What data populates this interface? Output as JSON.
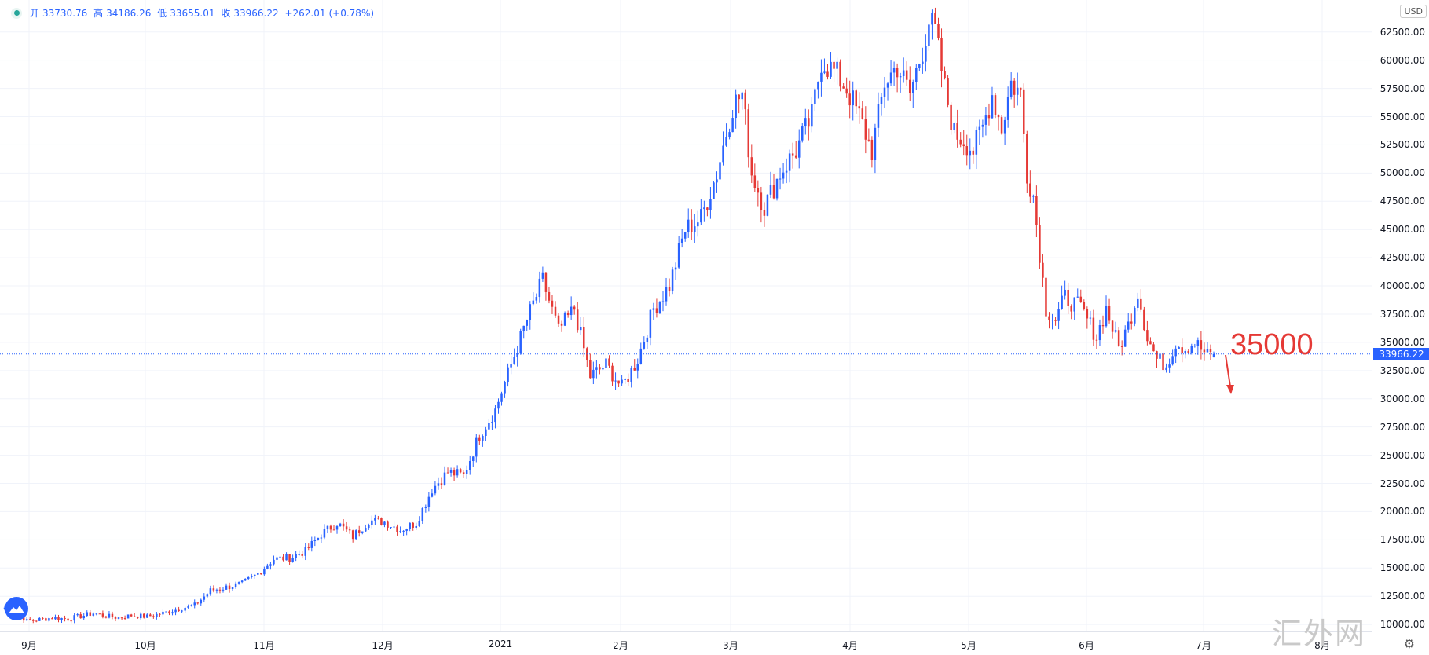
{
  "legend": {
    "open_label": "开",
    "open": "33730.76",
    "high_label": "高",
    "high": "34186.26",
    "low_label": "低",
    "low": "33655.01",
    "close_label": "收",
    "close": "33966.22",
    "change": "+262.01",
    "change_pct": "(+0.78%)"
  },
  "currency": "USD",
  "last_price": "33966.22",
  "annotation": {
    "text": "35000",
    "color": "#e53935"
  },
  "watermark": "汇外网",
  "colors": {
    "up": "#2962ff",
    "down": "#e53935",
    "grid": "#f0f3fa",
    "price_line": "#2962ff"
  },
  "chart_data": {
    "type": "candlestick",
    "y_ticks": [
      "10000.00",
      "12500.00",
      "15000.00",
      "17500.00",
      "20000.00",
      "22500.00",
      "25000.00",
      "27500.00",
      "30000.00",
      "32500.00",
      "35000.00",
      "37500.00",
      "40000.00",
      "42500.00",
      "45000.00",
      "47500.00",
      "50000.00",
      "52500.00",
      "55000.00",
      "57500.00",
      "60000.00",
      "62500.00"
    ],
    "x_ticks": [
      "9月",
      "10月",
      "11月",
      "12月",
      "2021",
      "2月",
      "3月",
      "4月",
      "5月",
      "6月",
      "7月",
      "8月"
    ],
    "ylim": [
      9800,
      64500
    ],
    "anchors": [
      [
        0,
        11500
      ],
      [
        2,
        11200
      ],
      [
        5,
        10800
      ],
      [
        7,
        10300
      ],
      [
        10,
        10400
      ],
      [
        15,
        10600
      ],
      [
        20,
        10500
      ],
      [
        25,
        10800
      ],
      [
        28,
        11000
      ],
      [
        33,
        10700
      ],
      [
        36,
        10600
      ],
      [
        40,
        10800
      ],
      [
        45,
        10700
      ],
      [
        50,
        11000
      ],
      [
        55,
        11400
      ],
      [
        60,
        11700
      ],
      [
        65,
        13000
      ],
      [
        70,
        13300
      ],
      [
        75,
        13600
      ],
      [
        80,
        14500
      ],
      [
        85,
        15800
      ],
      [
        90,
        15900
      ],
      [
        95,
        16500
      ],
      [
        100,
        18000
      ],
      [
        105,
        19000
      ],
      [
        110,
        17800
      ],
      [
        115,
        19200
      ],
      [
        120,
        19100
      ],
      [
        125,
        18400
      ],
      [
        130,
        19000
      ],
      [
        135,
        22000
      ],
      [
        140,
        23500
      ],
      [
        145,
        23200
      ],
      [
        150,
        26800
      ],
      [
        155,
        29000
      ],
      [
        160,
        33000
      ],
      [
        165,
        37000
      ],
      [
        170,
        40500
      ],
      [
        175,
        36000
      ],
      [
        180,
        38000
      ],
      [
        185,
        32000
      ],
      [
        190,
        33000
      ],
      [
        195,
        31000
      ],
      [
        200,
        33500
      ],
      [
        205,
        38000
      ],
      [
        210,
        40000
      ],
      [
        215,
        45000
      ],
      [
        220,
        46000
      ],
      [
        225,
        50000
      ],
      [
        230,
        56000
      ],
      [
        233,
        57000
      ],
      [
        236,
        50000
      ],
      [
        240,
        47000
      ],
      [
        245,
        50000
      ],
      [
        250,
        52000
      ],
      [
        255,
        55000
      ],
      [
        258,
        60000
      ],
      [
        262,
        59000
      ],
      [
        266,
        57500
      ],
      [
        270,
        55000
      ],
      [
        274,
        52000
      ],
      [
        278,
        58000
      ],
      [
        282,
        59500
      ],
      [
        286,
        57000
      ],
      [
        290,
        61000
      ],
      [
        292,
        63500
      ],
      [
        294,
        62500
      ],
      [
        297,
        57500
      ],
      [
        300,
        53500
      ],
      [
        303,
        53000
      ],
      [
        306,
        52000
      ],
      [
        309,
        54000
      ],
      [
        312,
        57000
      ],
      [
        315,
        54000
      ],
      [
        318,
        58000
      ],
      [
        321,
        57000
      ],
      [
        323,
        50000
      ],
      [
        325,
        48000
      ],
      [
        327,
        43000
      ],
      [
        329,
        38000
      ],
      [
        332,
        37000
      ],
      [
        335,
        39000
      ],
      [
        340,
        38000
      ],
      [
        345,
        35500
      ],
      [
        348,
        38000
      ],
      [
        352,
        34500
      ],
      [
        355,
        36500
      ],
      [
        358,
        39500
      ],
      [
        361,
        35500
      ],
      [
        364,
        33500
      ],
      [
        367,
        33000
      ],
      [
        370,
        35000
      ],
      [
        373,
        34500
      ],
      [
        376,
        35000
      ],
      [
        380,
        33800
      ],
      [
        382,
        33966
      ]
    ],
    "last": {
      "open": 33730.76,
      "high": 34186.26,
      "low": 33655.01,
      "close": 33966.22
    }
  }
}
